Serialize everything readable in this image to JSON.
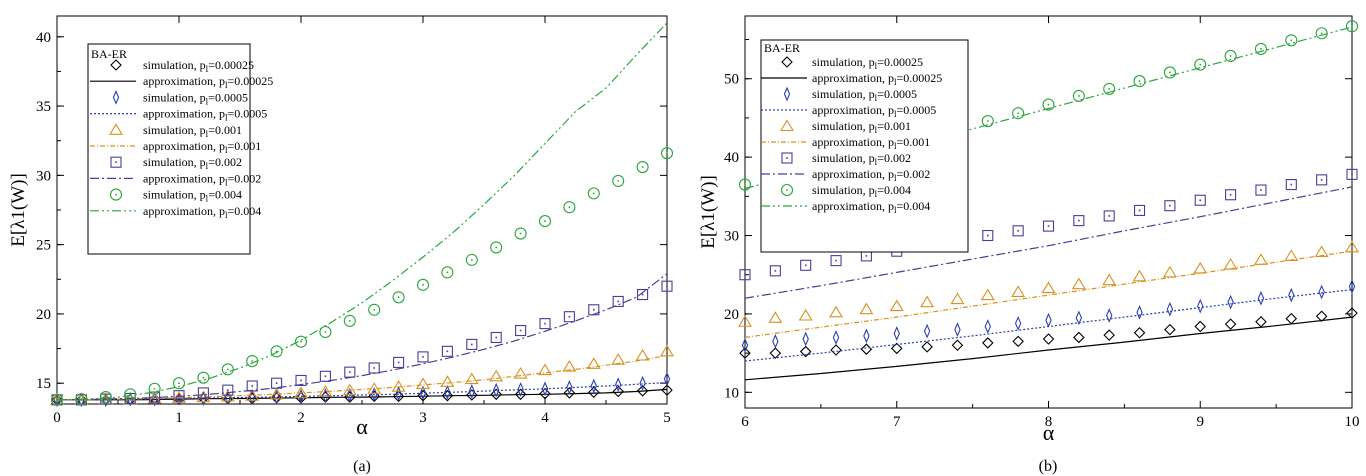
{
  "chart_data": [
    {
      "panel_label": "(a)",
      "type": "line",
      "xlabel": "α",
      "ylabel": "E[λ1(W)]",
      "xlim": [
        0,
        5
      ],
      "ylim": [
        13.5,
        41.5
      ],
      "xticks": [
        0,
        1,
        2,
        3,
        4,
        5
      ],
      "yticks": [
        15,
        20,
        25,
        30,
        35,
        40
      ],
      "grid": false,
      "legend_position": "top-left",
      "legend_title": "BA-ER",
      "sim_x": [
        0,
        0.2,
        0.4,
        0.6,
        0.8,
        1.0,
        1.2,
        1.4,
        1.6,
        1.8,
        2.0,
        2.2,
        2.4,
        2.6,
        2.8,
        3.0,
        3.2,
        3.4,
        3.6,
        3.8,
        4.0,
        4.2,
        4.4,
        4.6,
        4.8,
        5.0
      ],
      "approx_x": [
        0,
        0.25,
        0.5,
        0.75,
        1.0,
        1.25,
        1.5,
        1.75,
        2.0,
        2.25,
        2.5,
        2.75,
        3.0,
        3.25,
        3.5,
        3.75,
        4.0,
        4.25,
        4.5,
        4.75,
        5.0
      ],
      "series": [
        {
          "p": "0.00025",
          "color": "#000000",
          "marker": "diamond",
          "dash": "",
          "simulation_label": "simulation, p",
          "approximation_label": "approximation, p",
          "sub": "l",
          "value_label": "=0.00025",
          "simulation": [
            13.8,
            13.8,
            13.8,
            13.8,
            13.85,
            13.85,
            13.9,
            13.9,
            13.9,
            13.95,
            13.95,
            14.0,
            14.0,
            14.05,
            14.05,
            14.1,
            14.1,
            14.15,
            14.2,
            14.2,
            14.25,
            14.3,
            14.35,
            14.4,
            14.45,
            14.5
          ],
          "approximation": [
            13.8,
            13.8,
            13.8,
            13.82,
            13.85,
            13.88,
            13.9,
            13.92,
            13.95,
            13.98,
            14.0,
            14.03,
            14.06,
            14.1,
            14.13,
            14.17,
            14.2,
            14.25,
            14.3,
            14.4,
            14.55
          ]
        },
        {
          "p": "0.0005",
          "color": "#2b3fb5",
          "marker": "thin-diamond",
          "dash": "2,2",
          "simulation_label": "simulation, p",
          "approximation_label": "approximation, p",
          "sub": "l",
          "value_label": "=0.0005",
          "simulation": [
            13.8,
            13.8,
            13.8,
            13.85,
            13.85,
            13.9,
            13.9,
            13.95,
            14.0,
            14.0,
            14.05,
            14.1,
            14.15,
            14.2,
            14.25,
            14.3,
            14.35,
            14.4,
            14.5,
            14.55,
            14.6,
            14.7,
            14.8,
            14.9,
            15.0,
            15.3
          ],
          "approximation": [
            13.8,
            13.8,
            13.82,
            13.85,
            13.9,
            13.93,
            13.97,
            14.0,
            14.05,
            14.1,
            14.15,
            14.2,
            14.28,
            14.35,
            14.43,
            14.52,
            14.6,
            14.7,
            14.8,
            14.92,
            15.05
          ]
        },
        {
          "p": "0.001",
          "color": "#d9901e",
          "marker": "triangle",
          "dash": "5,2,1,2",
          "simulation_label": "simulation, p",
          "approximation_label": "approximation, p",
          "sub": "l",
          "value_label": "=0.001",
          "simulation": [
            13.8,
            13.8,
            13.85,
            13.85,
            13.9,
            13.95,
            14.0,
            14.05,
            14.1,
            14.2,
            14.3,
            14.4,
            14.5,
            14.6,
            14.75,
            14.95,
            15.1,
            15.3,
            15.5,
            15.7,
            15.95,
            16.2,
            16.4,
            16.7,
            17.0,
            17.3
          ],
          "approximation": [
            13.8,
            13.82,
            13.85,
            13.9,
            13.95,
            14.02,
            14.1,
            14.2,
            14.3,
            14.42,
            14.55,
            14.7,
            14.88,
            15.05,
            15.25,
            15.5,
            15.75,
            16.0,
            16.3,
            16.6,
            17.0
          ]
        },
        {
          "p": "0.002",
          "color": "#4b3d96",
          "marker": "square",
          "dash": "9,3,2,3",
          "simulation_label": "simulation, p",
          "approximation_label": "approximation, p",
          "sub": "l",
          "value_label": "=0.002",
          "simulation": [
            13.8,
            13.8,
            13.85,
            13.9,
            14.0,
            14.1,
            14.3,
            14.5,
            14.8,
            15.0,
            15.2,
            15.5,
            15.8,
            16.1,
            16.5,
            16.9,
            17.3,
            17.8,
            18.3,
            18.8,
            19.3,
            19.8,
            20.3,
            20.9,
            21.4,
            22.0
          ],
          "approximation": [
            13.8,
            13.82,
            13.88,
            13.95,
            14.05,
            14.2,
            14.4,
            14.62,
            14.9,
            15.2,
            15.55,
            15.95,
            16.4,
            16.9,
            17.45,
            18.05,
            18.75,
            19.5,
            20.3,
            21.2,
            22.9
          ]
        },
        {
          "p": "0.004",
          "color": "#2aa53c",
          "marker": "circle",
          "dash": "9,3,2,3,2,3",
          "simulation_label": "simulation, p",
          "approximation_label": "approximation, p",
          "sub": "l",
          "value_label": "=0.004",
          "simulation": [
            13.8,
            13.85,
            14.0,
            14.2,
            14.6,
            15.0,
            15.4,
            16.0,
            16.6,
            17.3,
            18.0,
            18.7,
            19.5,
            20.3,
            21.2,
            22.1,
            23.0,
            23.9,
            24.8,
            25.8,
            26.7,
            27.7,
            28.7,
            29.6,
            30.6,
            31.6
          ],
          "approximation": [
            13.8,
            13.85,
            14.0,
            14.3,
            14.75,
            15.35,
            16.1,
            17.0,
            18.1,
            19.4,
            20.8,
            22.4,
            24.1,
            25.9,
            27.9,
            30.0,
            32.3,
            34.6,
            36.3,
            38.7,
            41.0
          ]
        }
      ]
    },
    {
      "panel_label": "(b)",
      "type": "line",
      "xlabel": "α",
      "ylabel": "E[λ1(W)]",
      "xlim": [
        6,
        10
      ],
      "ylim": [
        8,
        58
      ],
      "xticks": [
        6,
        7,
        8,
        9,
        10
      ],
      "yticks": [
        10,
        20,
        30,
        40,
        50
      ],
      "grid": false,
      "legend_position": "top-left",
      "legend_title": "BA-ER",
      "sim_x": [
        6.0,
        6.2,
        6.4,
        6.6,
        6.8,
        7.0,
        7.2,
        7.4,
        7.6,
        7.8,
        8.0,
        8.2,
        8.4,
        8.6,
        8.8,
        9.0,
        9.2,
        9.4,
        9.6,
        9.8,
        10.0
      ],
      "approx_x": [
        6.0,
        6.5,
        7.0,
        7.5,
        8.0,
        8.5,
        9.0,
        9.5,
        10.0
      ],
      "series": [
        {
          "p": "0.00025",
          "color": "#000000",
          "marker": "diamond",
          "dash": "",
          "simulation_label": "simulation, p",
          "approximation_label": "approximation, p",
          "sub": "l",
          "value_label": "=0.00025",
          "simulation": [
            15.0,
            15.0,
            15.2,
            15.4,
            15.5,
            15.6,
            15.8,
            16.0,
            16.3,
            16.5,
            16.8,
            17.0,
            17.3,
            17.6,
            18.0,
            18.4,
            18.7,
            19.0,
            19.4,
            19.7,
            20.1
          ],
          "approximation": [
            11.6,
            12.4,
            13.3,
            14.3,
            15.4,
            16.4,
            17.5,
            18.5,
            19.6
          ]
        },
        {
          "p": "0.0005",
          "color": "#2b3fb5",
          "marker": "thin-diamond",
          "dash": "2,2",
          "simulation_label": "simulation, p",
          "approximation_label": "approximation, p",
          "sub": "l",
          "value_label": "=0.0005",
          "simulation": [
            16.0,
            16.5,
            16.8,
            17.0,
            17.2,
            17.5,
            17.8,
            18.0,
            18.4,
            18.8,
            19.2,
            19.5,
            19.8,
            20.2,
            20.6,
            21.0,
            21.5,
            22.0,
            22.4,
            22.8,
            23.5
          ],
          "approximation": [
            14.0,
            15.0,
            16.1,
            17.2,
            18.4,
            19.6,
            20.8,
            22.0,
            23.1
          ]
        },
        {
          "p": "0.001",
          "color": "#d9901e",
          "marker": "triangle",
          "dash": "5,2,1,2",
          "simulation_label": "simulation, p",
          "approximation_label": "approximation, p",
          "sub": "l",
          "value_label": "=0.001",
          "simulation": [
            19.0,
            19.5,
            19.8,
            20.2,
            20.6,
            21.0,
            21.5,
            21.9,
            22.4,
            22.8,
            23.3,
            23.8,
            24.3,
            24.8,
            25.3,
            25.8,
            26.3,
            26.9,
            27.4,
            27.9,
            28.5
          ],
          "approximation": [
            17.0,
            18.3,
            19.6,
            21.0,
            22.4,
            23.8,
            25.2,
            26.6,
            28.0
          ]
        },
        {
          "p": "0.002",
          "color": "#4b3d96",
          "marker": "square",
          "dash": "9,3,2,3",
          "simulation_label": "simulation, p",
          "approximation_label": "approximation, p",
          "sub": "l",
          "value_label": "=0.002",
          "simulation": [
            25.0,
            25.5,
            26.2,
            26.8,
            27.4,
            28.0,
            28.6,
            29.3,
            30.0,
            30.6,
            31.2,
            31.9,
            32.5,
            33.2,
            33.8,
            34.5,
            35.2,
            35.8,
            36.5,
            37.1,
            37.8
          ],
          "approximation": [
            22.0,
            23.6,
            25.3,
            27.0,
            28.7,
            30.6,
            32.4,
            34.3,
            36.2
          ]
        },
        {
          "p": "0.004",
          "color": "#2aa53c",
          "marker": "circle",
          "dash": "9,3,2,3,2,3",
          "simulation_label": "simulation, p",
          "approximation_label": "approximation, p",
          "sub": "l",
          "value_label": "=0.004",
          "simulation": [
            36.5,
            37.0,
            37.8,
            38.6,
            39.5,
            40.3,
            41.3,
            42.5,
            44.6,
            45.6,
            46.7,
            47.8,
            48.7,
            49.7,
            50.8,
            51.8,
            52.9,
            53.8,
            54.9,
            55.8,
            56.7
          ],
          "approximation": [
            36.0,
            38.5,
            41.0,
            43.6,
            46.2,
            48.8,
            51.4,
            54.0,
            56.6
          ]
        }
      ]
    }
  ]
}
